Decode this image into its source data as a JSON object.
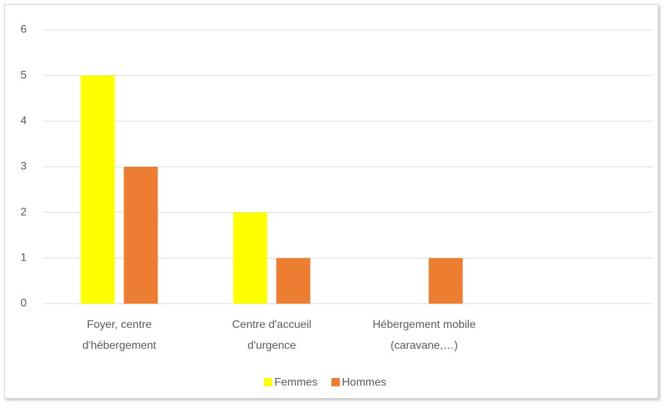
{
  "chart_data": {
    "type": "bar",
    "categories": [
      "Foyer, centre d'hébergement",
      "Centre d'accueil d'urgence",
      "Hébergement mobile (caravane,…)",
      null
    ],
    "series": [
      {
        "name": "Femmes",
        "color": "#ffff00",
        "values": [
          5,
          2,
          0,
          null
        ]
      },
      {
        "name": "Hommes",
        "color": "#ed7d31",
        "values": [
          3,
          1,
          1,
          null
        ]
      }
    ],
    "ylim": [
      0,
      6
    ],
    "yticks": [
      0,
      1,
      2,
      3,
      4,
      5,
      6
    ],
    "grid": true,
    "legend": "bottom"
  }
}
